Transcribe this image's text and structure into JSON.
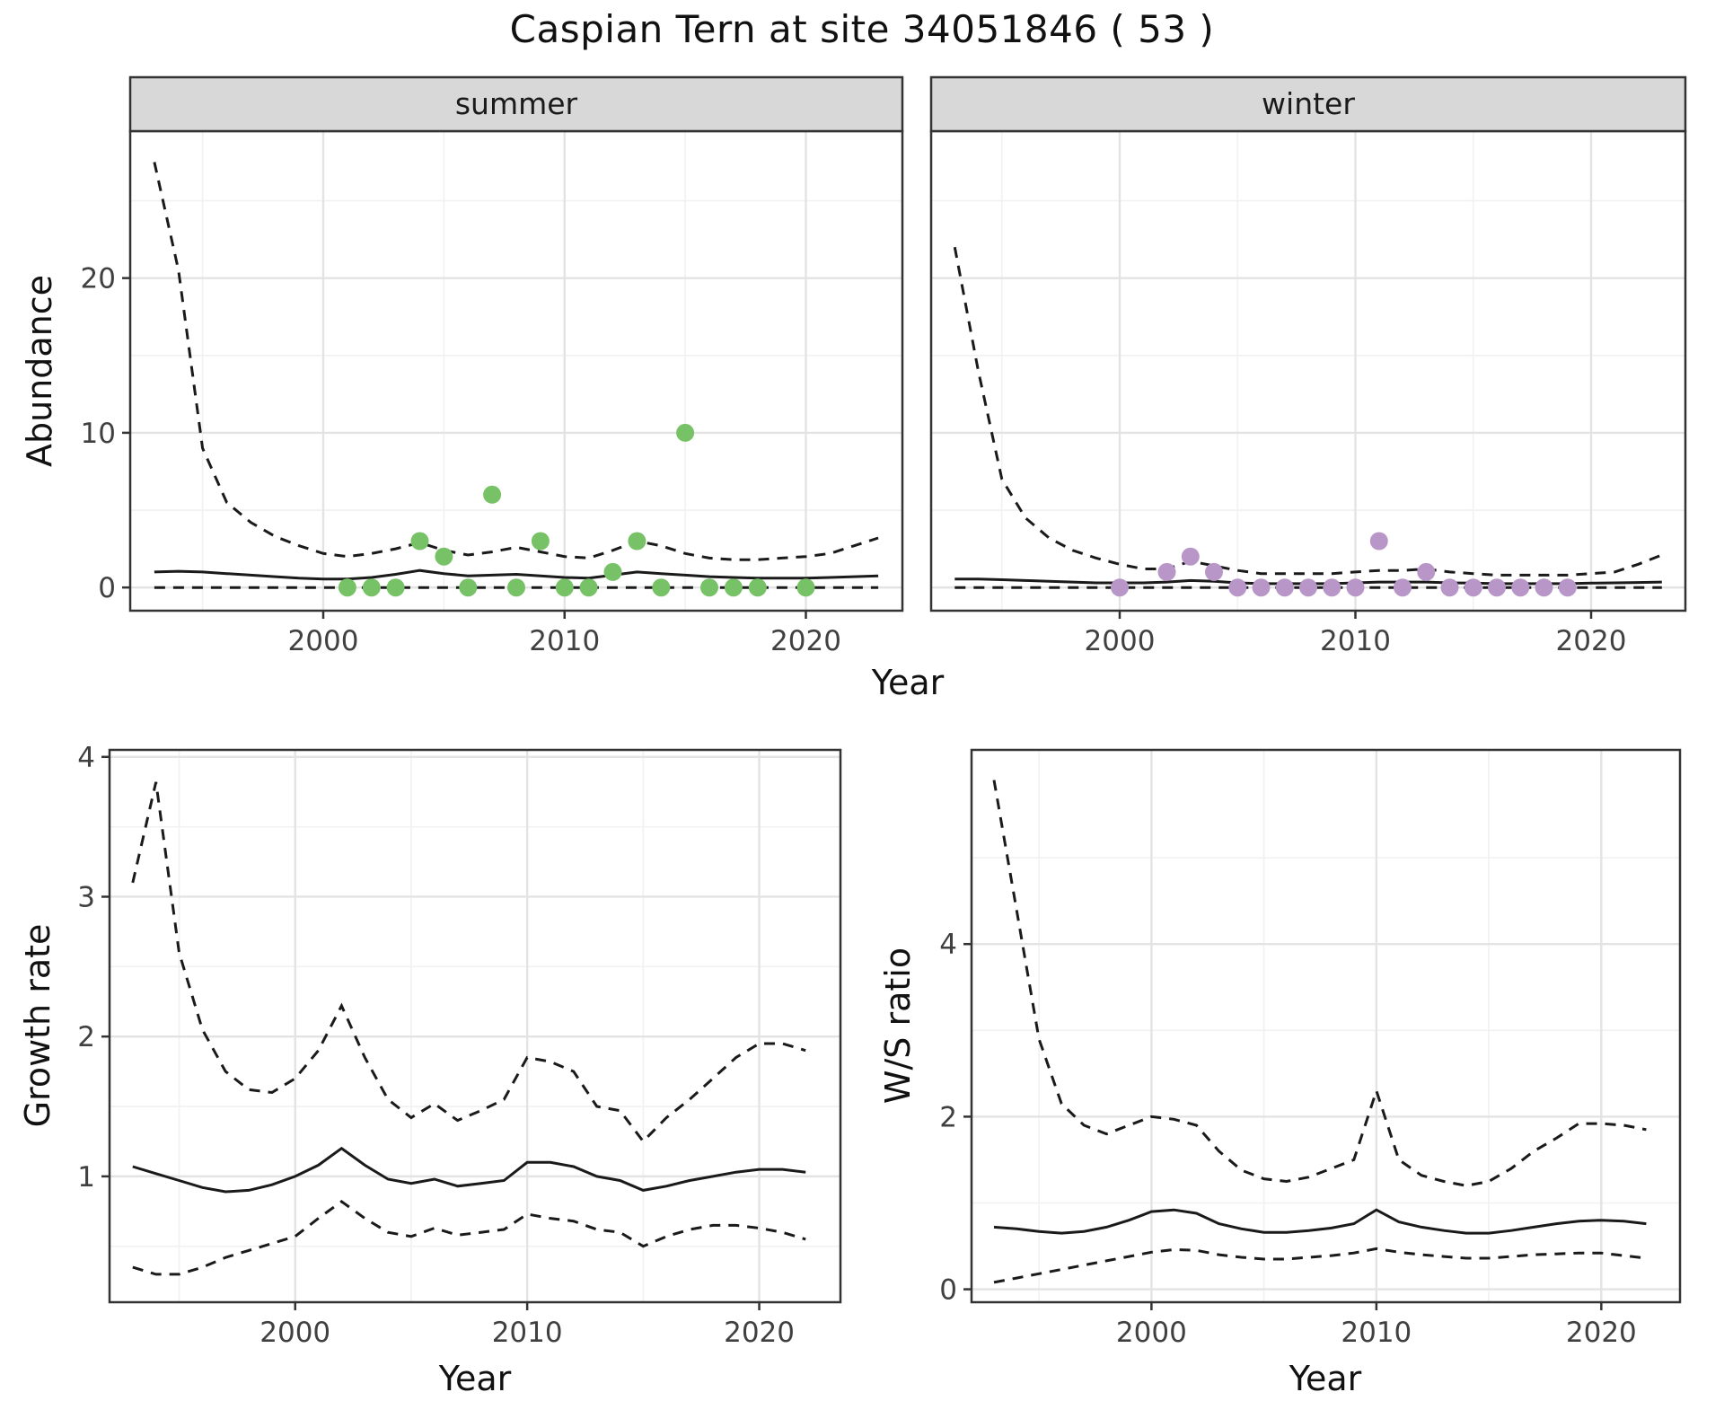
{
  "title": "Caspian Tern at site 34051846 ( 53 )",
  "colors": {
    "summer_points": "#77c266",
    "winter_points": "#b897c8",
    "line": "#1a1a1a",
    "grid_major": "#e3e3e3",
    "grid_minor": "#f1f1f1",
    "panel_border": "#333333",
    "strip_bg": "#d8d8d8",
    "axis_text": "#404040",
    "background": "#ffffff"
  },
  "axis_titles": {
    "abundance": "Abundance",
    "year": "Year",
    "growth_rate": "Growth rate",
    "ws_ratio": "W/S ratio"
  },
  "chart_data": [
    {
      "id": "abundance-summer",
      "type": "line",
      "facet_label": "summer",
      "xlabel": "Year",
      "ylabel": "Abundance",
      "xlim": [
        1992,
        2024
      ],
      "ylim": [
        -1.5,
        29.5
      ],
      "xticks": [
        2000,
        2010,
        2020
      ],
      "yticks": [
        0,
        10,
        20
      ],
      "xminor": [
        1995,
        2005,
        2015
      ],
      "yminor": [
        5,
        15,
        25
      ],
      "grid": true,
      "legend": "none",
      "x": [
        1993,
        1994,
        1995,
        1996,
        1997,
        1998,
        1999,
        2000,
        2001,
        2002,
        2003,
        2004,
        2005,
        2006,
        2007,
        2008,
        2009,
        2010,
        2011,
        2012,
        2013,
        2014,
        2015,
        2016,
        2017,
        2018,
        2019,
        2020,
        2021,
        2022,
        2023
      ],
      "series": [
        {
          "name": "upper-ci",
          "style": "dashed",
          "values": [
            27.5,
            20.5,
            9,
            5.5,
            4.2,
            3.3,
            2.7,
            2.2,
            2.0,
            2.2,
            2.5,
            2.9,
            2.4,
            2.1,
            2.3,
            2.6,
            2.3,
            2.0,
            1.9,
            2.4,
            3.0,
            2.7,
            2.2,
            1.9,
            1.8,
            1.8,
            1.9,
            2.0,
            2.2,
            2.7,
            3.2
          ]
        },
        {
          "name": "median",
          "style": "solid",
          "values": [
            1.0,
            1.05,
            1.0,
            0.9,
            0.8,
            0.7,
            0.6,
            0.55,
            0.55,
            0.65,
            0.85,
            1.1,
            0.9,
            0.75,
            0.8,
            0.85,
            0.75,
            0.65,
            0.6,
            0.8,
            1.0,
            0.9,
            0.8,
            0.7,
            0.65,
            0.6,
            0.6,
            0.6,
            0.65,
            0.7,
            0.75
          ]
        },
        {
          "name": "lower-ci",
          "style": "dashed",
          "values": [
            0,
            0,
            0,
            0,
            0,
            0,
            0,
            0,
            0,
            0,
            0,
            0,
            0,
            0,
            0,
            0,
            0,
            0,
            0,
            0,
            0,
            0,
            0,
            0,
            0,
            0,
            0,
            0,
            0,
            0,
            0
          ]
        }
      ],
      "points": {
        "name": "summer-observation-point",
        "color_key": "summer_points",
        "x": [
          2001,
          2002,
          2003,
          2004,
          2005,
          2006,
          2007,
          2008,
          2009,
          2010,
          2011,
          2012,
          2013,
          2014,
          2015,
          2016,
          2017,
          2018,
          2020
        ],
        "y": [
          0,
          0,
          0,
          3,
          2,
          0,
          6,
          0,
          3,
          0,
          0,
          1,
          3,
          0,
          10,
          0,
          0,
          0,
          0
        ]
      }
    },
    {
      "id": "abundance-winter",
      "type": "line",
      "facet_label": "winter",
      "xlabel": "Year",
      "ylabel": "Abundance",
      "xlim": [
        1992,
        2024
      ],
      "ylim": [
        -1.5,
        29.5
      ],
      "xticks": [
        2000,
        2010,
        2020
      ],
      "yticks": [
        0,
        10,
        20
      ],
      "xminor": [
        1995,
        2005,
        2015
      ],
      "yminor": [
        5,
        15,
        25
      ],
      "grid": true,
      "legend": "none",
      "x": [
        1993,
        1994,
        1995,
        1996,
        1997,
        1998,
        1999,
        2000,
        2001,
        2002,
        2003,
        2004,
        2005,
        2006,
        2007,
        2008,
        2009,
        2010,
        2011,
        2012,
        2013,
        2014,
        2015,
        2016,
        2017,
        2018,
        2019,
        2020,
        2021,
        2022,
        2023
      ],
      "series": [
        {
          "name": "upper-ci",
          "style": "dashed",
          "values": [
            22,
            14,
            7,
            4.5,
            3.2,
            2.4,
            1.9,
            1.5,
            1.2,
            1.2,
            1.7,
            1.4,
            1.1,
            0.9,
            0.9,
            0.9,
            0.9,
            1.0,
            1.1,
            1.1,
            1.2,
            1.0,
            0.9,
            0.8,
            0.8,
            0.8,
            0.8,
            0.9,
            1.0,
            1.5,
            2.1
          ]
        },
        {
          "name": "median",
          "style": "solid",
          "values": [
            0.55,
            0.55,
            0.5,
            0.45,
            0.4,
            0.35,
            0.3,
            0.3,
            0.3,
            0.35,
            0.45,
            0.4,
            0.3,
            0.25,
            0.25,
            0.25,
            0.25,
            0.3,
            0.35,
            0.35,
            0.35,
            0.3,
            0.28,
            0.25,
            0.25,
            0.25,
            0.25,
            0.28,
            0.3,
            0.32,
            0.35
          ]
        },
        {
          "name": "lower-ci",
          "style": "dashed",
          "values": [
            0,
            0,
            0,
            0,
            0,
            0,
            0,
            0,
            0,
            0,
            0,
            0,
            0,
            0,
            0,
            0,
            0,
            0,
            0,
            0,
            0,
            0,
            0,
            0,
            0,
            0,
            0,
            0,
            0,
            0,
            0
          ]
        }
      ],
      "points": {
        "name": "winter-observation-point",
        "color_key": "winter_points",
        "x": [
          2000,
          2002,
          2003,
          2004,
          2005,
          2006,
          2007,
          2008,
          2009,
          2010,
          2011,
          2012,
          2013,
          2014,
          2015,
          2016,
          2017,
          2018,
          2019
        ],
        "y": [
          0,
          1,
          2,
          1,
          0,
          0,
          0,
          0,
          0,
          0,
          3,
          0,
          1,
          0,
          0,
          0,
          0,
          0,
          0
        ]
      }
    },
    {
      "id": "growth-rate",
      "type": "line",
      "facet_label": "",
      "xlabel": "Year",
      "ylabel": "Growth rate",
      "xlim": [
        1992,
        2023.5
      ],
      "ylim": [
        0.1,
        4.05
      ],
      "xticks": [
        2000,
        2010,
        2020
      ],
      "yticks": [
        1,
        2,
        3,
        4
      ],
      "xminor": [
        1995,
        2005,
        2015
      ],
      "yminor": [
        0.5,
        1.5,
        2.5,
        3.5
      ],
      "grid": true,
      "legend": "none",
      "x": [
        1993,
        1994,
        1995,
        1996,
        1997,
        1998,
        1999,
        2000,
        2001,
        2002,
        2003,
        2004,
        2005,
        2006,
        2007,
        2008,
        2009,
        2010,
        2011,
        2012,
        2013,
        2014,
        2015,
        2016,
        2017,
        2018,
        2019,
        2020,
        2021,
        2022
      ],
      "series": [
        {
          "name": "upper-ci",
          "style": "dashed",
          "values": [
            3.1,
            3.82,
            2.6,
            2.05,
            1.75,
            1.62,
            1.6,
            1.7,
            1.9,
            2.22,
            1.85,
            1.55,
            1.42,
            1.52,
            1.4,
            1.47,
            1.55,
            1.85,
            1.82,
            1.75,
            1.5,
            1.47,
            1.25,
            1.42,
            1.55,
            1.7,
            1.85,
            1.95,
            1.95,
            1.9
          ]
        },
        {
          "name": "median",
          "style": "solid",
          "values": [
            1.07,
            1.02,
            0.97,
            0.92,
            0.89,
            0.9,
            0.94,
            1.0,
            1.08,
            1.2,
            1.08,
            0.98,
            0.95,
            0.98,
            0.93,
            0.95,
            0.97,
            1.1,
            1.1,
            1.07,
            1.0,
            0.97,
            0.9,
            0.93,
            0.97,
            1.0,
            1.03,
            1.05,
            1.05,
            1.03
          ]
        },
        {
          "name": "lower-ci",
          "style": "dashed",
          "values": [
            0.35,
            0.3,
            0.3,
            0.35,
            0.42,
            0.47,
            0.52,
            0.57,
            0.7,
            0.82,
            0.7,
            0.6,
            0.57,
            0.63,
            0.58,
            0.6,
            0.62,
            0.73,
            0.7,
            0.68,
            0.62,
            0.6,
            0.5,
            0.57,
            0.62,
            0.65,
            0.65,
            0.63,
            0.6,
            0.55
          ]
        }
      ]
    },
    {
      "id": "ws-ratio",
      "type": "line",
      "facet_label": "",
      "xlabel": "Year",
      "ylabel": "W/S ratio",
      "xlim": [
        1992,
        2023.5
      ],
      "ylim": [
        -0.15,
        6.25
      ],
      "xticks": [
        2000,
        2010,
        2020
      ],
      "yticks": [
        0,
        2,
        4
      ],
      "xminor": [
        1995,
        2005,
        2015
      ],
      "yminor": [
        1,
        3,
        5
      ],
      "grid": true,
      "legend": "none",
      "x": [
        1993,
        1994,
        1995,
        1996,
        1997,
        1998,
        1999,
        2000,
        2001,
        2002,
        2003,
        2004,
        2005,
        2006,
        2007,
        2008,
        2009,
        2010,
        2011,
        2012,
        2013,
        2014,
        2015,
        2016,
        2017,
        2018,
        2019,
        2020,
        2021,
        2022
      ],
      "series": [
        {
          "name": "upper-ci",
          "style": "dashed",
          "values": [
            5.9,
            4.4,
            2.9,
            2.15,
            1.9,
            1.8,
            1.9,
            2.0,
            1.97,
            1.9,
            1.6,
            1.38,
            1.28,
            1.25,
            1.3,
            1.4,
            1.5,
            2.3,
            1.5,
            1.32,
            1.25,
            1.2,
            1.25,
            1.4,
            1.6,
            1.75,
            1.92,
            1.92,
            1.9,
            1.85
          ]
        },
        {
          "name": "median",
          "style": "solid",
          "values": [
            0.72,
            0.7,
            0.67,
            0.65,
            0.67,
            0.72,
            0.8,
            0.9,
            0.92,
            0.88,
            0.76,
            0.7,
            0.66,
            0.66,
            0.68,
            0.71,
            0.76,
            0.92,
            0.78,
            0.72,
            0.68,
            0.65,
            0.65,
            0.68,
            0.72,
            0.76,
            0.79,
            0.8,
            0.79,
            0.76
          ]
        },
        {
          "name": "lower-ci",
          "style": "dashed",
          "values": [
            0.08,
            0.13,
            0.18,
            0.23,
            0.28,
            0.33,
            0.38,
            0.43,
            0.46,
            0.45,
            0.4,
            0.37,
            0.35,
            0.35,
            0.37,
            0.39,
            0.42,
            0.47,
            0.43,
            0.4,
            0.38,
            0.36,
            0.36,
            0.38,
            0.4,
            0.41,
            0.42,
            0.42,
            0.39,
            0.36
          ]
        }
      ]
    }
  ]
}
